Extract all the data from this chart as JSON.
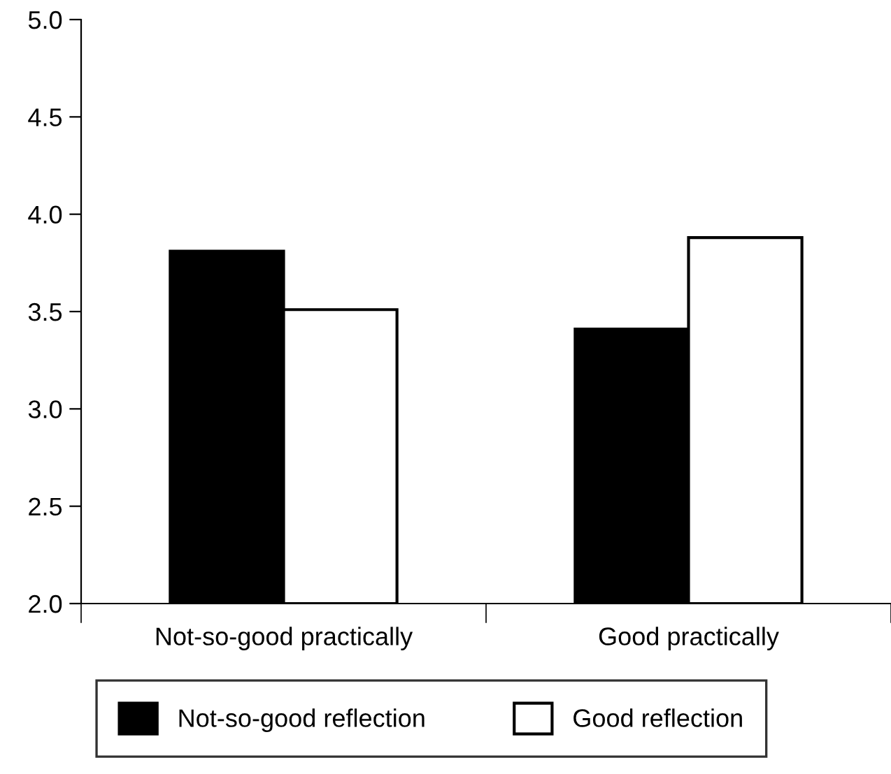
{
  "chart_data": {
    "type": "bar",
    "categories": [
      "Not-so-good practically",
      "Good practically"
    ],
    "series": [
      {
        "name": "Not-so-good reflection",
        "color": "#000000",
        "values": [
          3.81,
          3.41
        ]
      },
      {
        "name": "Good reflection",
        "color": "#ffffff",
        "values": [
          3.51,
          3.88
        ]
      }
    ],
    "ylim": [
      2.0,
      5.0
    ],
    "yticks": [
      {
        "value": 2.0,
        "label": "2.0"
      },
      {
        "value": 2.5,
        "label": "2.5"
      },
      {
        "value": 3.0,
        "label": "3.0"
      },
      {
        "value": 3.5,
        "label": "3.5"
      },
      {
        "value": 4.0,
        "label": "4.0"
      },
      {
        "value": 4.5,
        "label": "4.5"
      },
      {
        "value": 5.0,
        "label": "5.0"
      }
    ],
    "grid": false,
    "legend": "bottom"
  }
}
